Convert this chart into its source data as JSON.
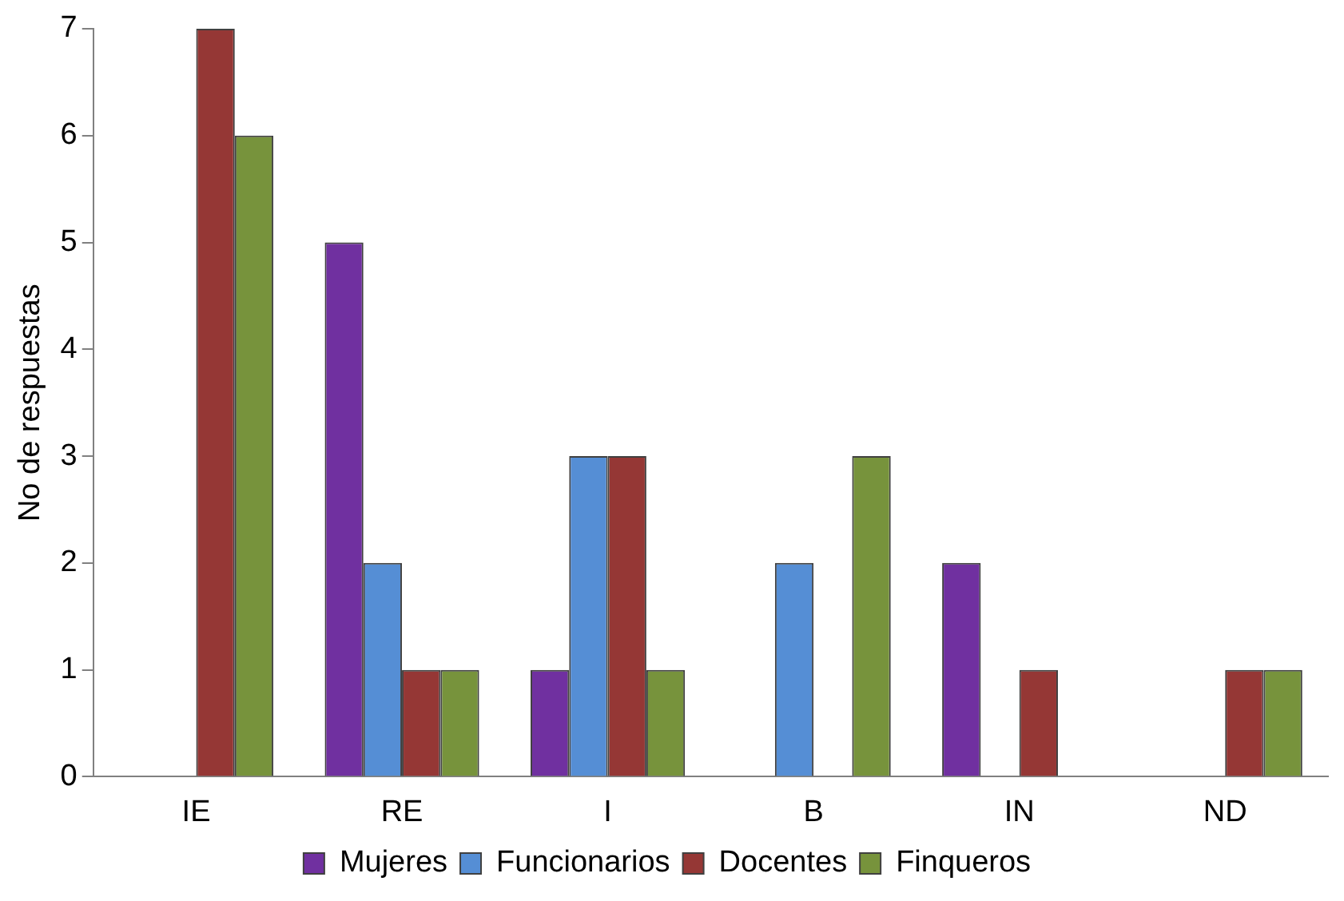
{
  "chart_data": {
    "type": "bar",
    "ylabel": "No de respuestas",
    "categories": [
      "IE",
      "RE",
      "I",
      "B",
      "IN",
      "ND"
    ],
    "series": [
      {
        "name": "Mujeres",
        "color": "#7030a0",
        "values": [
          0,
          5,
          1,
          0,
          2,
          0
        ]
      },
      {
        "name": "Funcionarios",
        "color": "#558ed5",
        "values": [
          0,
          2,
          3,
          2,
          0,
          0
        ]
      },
      {
        "name": "Docentes",
        "color": "#953735",
        "values": [
          7,
          1,
          3,
          0,
          1,
          1
        ]
      },
      {
        "name": "Finqueros",
        "color": "#77933c",
        "values": [
          6,
          1,
          1,
          3,
          0,
          1
        ]
      }
    ],
    "ylim": [
      0,
      7
    ],
    "yticks": [
      0,
      1,
      2,
      3,
      4,
      5,
      6,
      7
    ],
    "grid": false,
    "legend": "bottom"
  }
}
